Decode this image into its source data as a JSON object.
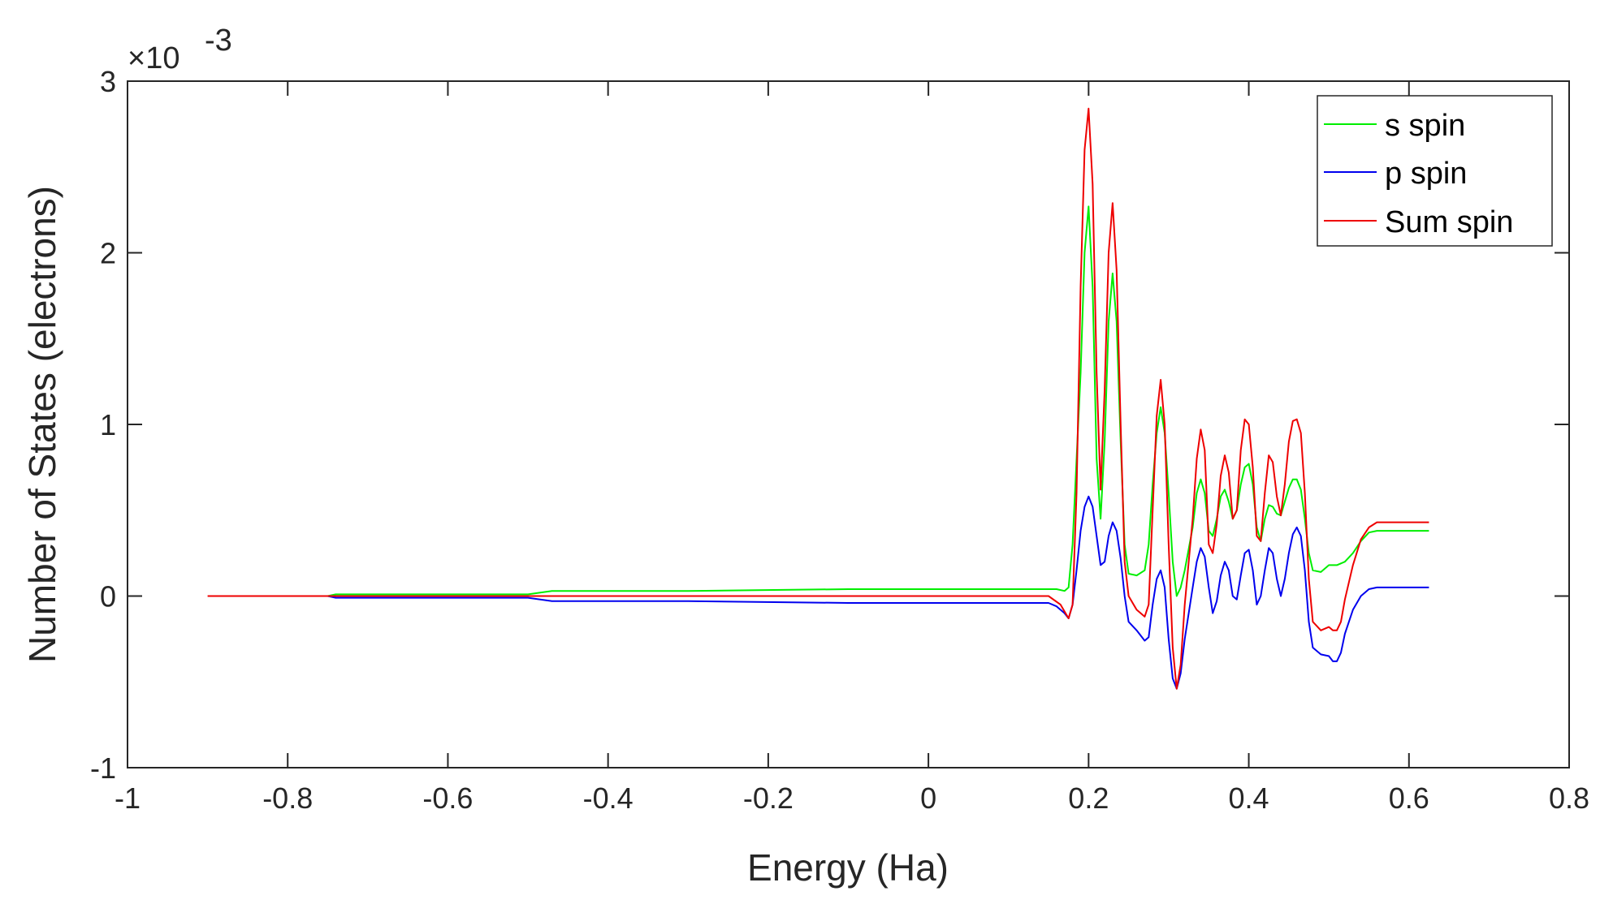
{
  "chart_data": {
    "type": "line",
    "title": "",
    "xlabel": "Energy (Ha)",
    "ylabel": "Number of States (electrons)",
    "y_multiplier_base": "×10",
    "y_multiplier_exponent": "-3",
    "xlim": [
      -1,
      0.8
    ],
    "ylim": [
      -1,
      3
    ],
    "x_ticks": [
      -1,
      -0.8,
      -0.6,
      -0.4,
      -0.2,
      0,
      0.2,
      0.4,
      0.6,
      0.8
    ],
    "x_tick_labels": [
      "-1",
      "-0.8",
      "-0.6",
      "-0.4",
      "-0.2",
      "0",
      "0.2",
      "0.4",
      "0.6",
      "0.8"
    ],
    "y_ticks": [
      -1,
      0,
      1,
      2,
      3
    ],
    "y_tick_labels": [
      "-1",
      "0",
      "1",
      "2",
      "3"
    ],
    "grid": false,
    "legend_position": "top-right",
    "series": [
      {
        "name": "s spin",
        "color": "#00ee00",
        "points": [
          [
            -0.75,
            0.0
          ],
          [
            -0.74,
            0.01
          ],
          [
            -0.5,
            0.01
          ],
          [
            -0.47,
            0.03
          ],
          [
            -0.3,
            0.03
          ],
          [
            -0.1,
            0.04
          ],
          [
            0.1,
            0.04
          ],
          [
            0.16,
            0.04
          ],
          [
            0.17,
            0.03
          ],
          [
            0.175,
            0.05
          ],
          [
            0.18,
            0.3
          ],
          [
            0.19,
            1.3
          ],
          [
            0.195,
            2.0
          ],
          [
            0.2,
            2.27
          ],
          [
            0.205,
            1.8
          ],
          [
            0.21,
            0.8
          ],
          [
            0.215,
            0.45
          ],
          [
            0.22,
            0.9
          ],
          [
            0.225,
            1.6
          ],
          [
            0.23,
            1.88
          ],
          [
            0.235,
            1.6
          ],
          [
            0.24,
            0.9
          ],
          [
            0.245,
            0.3
          ],
          [
            0.25,
            0.13
          ],
          [
            0.26,
            0.12
          ],
          [
            0.27,
            0.15
          ],
          [
            0.275,
            0.3
          ],
          [
            0.28,
            0.65
          ],
          [
            0.285,
            0.95
          ],
          [
            0.29,
            1.1
          ],
          [
            0.295,
            0.95
          ],
          [
            0.3,
            0.6
          ],
          [
            0.305,
            0.2
          ],
          [
            0.31,
            0.0
          ],
          [
            0.315,
            0.05
          ],
          [
            0.32,
            0.15
          ],
          [
            0.33,
            0.4
          ],
          [
            0.335,
            0.6
          ],
          [
            0.34,
            0.68
          ],
          [
            0.345,
            0.6
          ],
          [
            0.35,
            0.38
          ],
          [
            0.355,
            0.35
          ],
          [
            0.36,
            0.45
          ],
          [
            0.365,
            0.58
          ],
          [
            0.37,
            0.62
          ],
          [
            0.375,
            0.55
          ],
          [
            0.38,
            0.45
          ],
          [
            0.385,
            0.5
          ],
          [
            0.39,
            0.65
          ],
          [
            0.395,
            0.75
          ],
          [
            0.4,
            0.77
          ],
          [
            0.405,
            0.65
          ],
          [
            0.41,
            0.4
          ],
          [
            0.415,
            0.32
          ],
          [
            0.42,
            0.45
          ],
          [
            0.425,
            0.53
          ],
          [
            0.43,
            0.52
          ],
          [
            0.435,
            0.48
          ],
          [
            0.44,
            0.47
          ],
          [
            0.445,
            0.55
          ],
          [
            0.45,
            0.63
          ],
          [
            0.455,
            0.68
          ],
          [
            0.46,
            0.68
          ],
          [
            0.465,
            0.62
          ],
          [
            0.47,
            0.45
          ],
          [
            0.475,
            0.25
          ],
          [
            0.48,
            0.15
          ],
          [
            0.49,
            0.14
          ],
          [
            0.5,
            0.18
          ],
          [
            0.51,
            0.18
          ],
          [
            0.52,
            0.2
          ],
          [
            0.53,
            0.25
          ],
          [
            0.54,
            0.32
          ],
          [
            0.55,
            0.37
          ],
          [
            0.56,
            0.38
          ],
          [
            0.6,
            0.38
          ],
          [
            0.625,
            0.38
          ]
        ]
      },
      {
        "name": "p spin",
        "color": "#0000ee",
        "points": [
          [
            -0.75,
            0.0
          ],
          [
            -0.74,
            -0.01
          ],
          [
            -0.5,
            -0.01
          ],
          [
            -0.47,
            -0.03
          ],
          [
            -0.3,
            -0.03
          ],
          [
            -0.1,
            -0.04
          ],
          [
            0.1,
            -0.04
          ],
          [
            0.15,
            -0.04
          ],
          [
            0.16,
            -0.06
          ],
          [
            0.17,
            -0.1
          ],
          [
            0.175,
            -0.13
          ],
          [
            0.18,
            -0.05
          ],
          [
            0.185,
            0.15
          ],
          [
            0.19,
            0.38
          ],
          [
            0.195,
            0.52
          ],
          [
            0.2,
            0.58
          ],
          [
            0.205,
            0.52
          ],
          [
            0.21,
            0.35
          ],
          [
            0.215,
            0.18
          ],
          [
            0.22,
            0.2
          ],
          [
            0.225,
            0.35
          ],
          [
            0.23,
            0.43
          ],
          [
            0.235,
            0.38
          ],
          [
            0.24,
            0.22
          ],
          [
            0.245,
            0.0
          ],
          [
            0.25,
            -0.15
          ],
          [
            0.26,
            -0.2
          ],
          [
            0.27,
            -0.26
          ],
          [
            0.275,
            -0.24
          ],
          [
            0.28,
            -0.05
          ],
          [
            0.285,
            0.1
          ],
          [
            0.29,
            0.15
          ],
          [
            0.295,
            0.05
          ],
          [
            0.3,
            -0.25
          ],
          [
            0.305,
            -0.48
          ],
          [
            0.31,
            -0.54
          ],
          [
            0.315,
            -0.45
          ],
          [
            0.32,
            -0.25
          ],
          [
            0.33,
            0.05
          ],
          [
            0.335,
            0.2
          ],
          [
            0.34,
            0.28
          ],
          [
            0.345,
            0.23
          ],
          [
            0.35,
            0.05
          ],
          [
            0.355,
            -0.1
          ],
          [
            0.36,
            -0.03
          ],
          [
            0.365,
            0.12
          ],
          [
            0.37,
            0.2
          ],
          [
            0.375,
            0.15
          ],
          [
            0.38,
            0.0
          ],
          [
            0.385,
            -0.02
          ],
          [
            0.39,
            0.12
          ],
          [
            0.395,
            0.25
          ],
          [
            0.4,
            0.27
          ],
          [
            0.405,
            0.15
          ],
          [
            0.41,
            -0.05
          ],
          [
            0.415,
            0.0
          ],
          [
            0.42,
            0.15
          ],
          [
            0.425,
            0.28
          ],
          [
            0.43,
            0.25
          ],
          [
            0.435,
            0.1
          ],
          [
            0.44,
            0.0
          ],
          [
            0.445,
            0.1
          ],
          [
            0.45,
            0.25
          ],
          [
            0.455,
            0.36
          ],
          [
            0.46,
            0.4
          ],
          [
            0.465,
            0.35
          ],
          [
            0.47,
            0.15
          ],
          [
            0.475,
            -0.15
          ],
          [
            0.48,
            -0.3
          ],
          [
            0.49,
            -0.34
          ],
          [
            0.5,
            -0.35
          ],
          [
            0.505,
            -0.38
          ],
          [
            0.51,
            -0.38
          ],
          [
            0.515,
            -0.33
          ],
          [
            0.52,
            -0.22
          ],
          [
            0.53,
            -0.08
          ],
          [
            0.54,
            0.0
          ],
          [
            0.55,
            0.04
          ],
          [
            0.56,
            0.05
          ],
          [
            0.6,
            0.05
          ],
          [
            0.625,
            0.05
          ]
        ]
      },
      {
        "name": "Sum spin",
        "color": "#ee0000",
        "points": [
          [
            -0.9,
            0.0
          ],
          [
            -0.75,
            0.0
          ],
          [
            -0.5,
            0.0
          ],
          [
            0.1,
            0.0
          ],
          [
            0.15,
            0.0
          ],
          [
            0.165,
            -0.05
          ],
          [
            0.175,
            -0.13
          ],
          [
            0.18,
            -0.05
          ],
          [
            0.185,
            0.6
          ],
          [
            0.19,
            1.8
          ],
          [
            0.195,
            2.6
          ],
          [
            0.2,
            2.84
          ],
          [
            0.205,
            2.4
          ],
          [
            0.21,
            1.3
          ],
          [
            0.215,
            0.62
          ],
          [
            0.22,
            1.2
          ],
          [
            0.225,
            2.0
          ],
          [
            0.23,
            2.29
          ],
          [
            0.235,
            1.9
          ],
          [
            0.24,
            1.0
          ],
          [
            0.245,
            0.2
          ],
          [
            0.25,
            0.0
          ],
          [
            0.26,
            -0.08
          ],
          [
            0.27,
            -0.12
          ],
          [
            0.275,
            -0.05
          ],
          [
            0.28,
            0.5
          ],
          [
            0.285,
            1.05
          ],
          [
            0.29,
            1.26
          ],
          [
            0.295,
            1.0
          ],
          [
            0.3,
            0.3
          ],
          [
            0.305,
            -0.3
          ],
          [
            0.31,
            -0.54
          ],
          [
            0.315,
            -0.4
          ],
          [
            0.32,
            -0.05
          ],
          [
            0.33,
            0.45
          ],
          [
            0.335,
            0.8
          ],
          [
            0.34,
            0.97
          ],
          [
            0.345,
            0.85
          ],
          [
            0.35,
            0.3
          ],
          [
            0.355,
            0.25
          ],
          [
            0.36,
            0.42
          ],
          [
            0.365,
            0.7
          ],
          [
            0.37,
            0.82
          ],
          [
            0.375,
            0.72
          ],
          [
            0.38,
            0.45
          ],
          [
            0.385,
            0.5
          ],
          [
            0.39,
            0.85
          ],
          [
            0.395,
            1.03
          ],
          [
            0.4,
            1.0
          ],
          [
            0.405,
            0.75
          ],
          [
            0.41,
            0.35
          ],
          [
            0.415,
            0.32
          ],
          [
            0.42,
            0.6
          ],
          [
            0.425,
            0.82
          ],
          [
            0.43,
            0.78
          ],
          [
            0.435,
            0.58
          ],
          [
            0.44,
            0.47
          ],
          [
            0.445,
            0.65
          ],
          [
            0.45,
            0.9
          ],
          [
            0.455,
            1.02
          ],
          [
            0.46,
            1.03
          ],
          [
            0.465,
            0.95
          ],
          [
            0.47,
            0.6
          ],
          [
            0.475,
            0.1
          ],
          [
            0.48,
            -0.15
          ],
          [
            0.49,
            -0.2
          ],
          [
            0.5,
            -0.18
          ],
          [
            0.505,
            -0.2
          ],
          [
            0.51,
            -0.2
          ],
          [
            0.515,
            -0.15
          ],
          [
            0.52,
            -0.02
          ],
          [
            0.53,
            0.18
          ],
          [
            0.54,
            0.33
          ],
          [
            0.55,
            0.4
          ],
          [
            0.56,
            0.43
          ],
          [
            0.6,
            0.43
          ],
          [
            0.625,
            0.43
          ]
        ]
      }
    ]
  }
}
